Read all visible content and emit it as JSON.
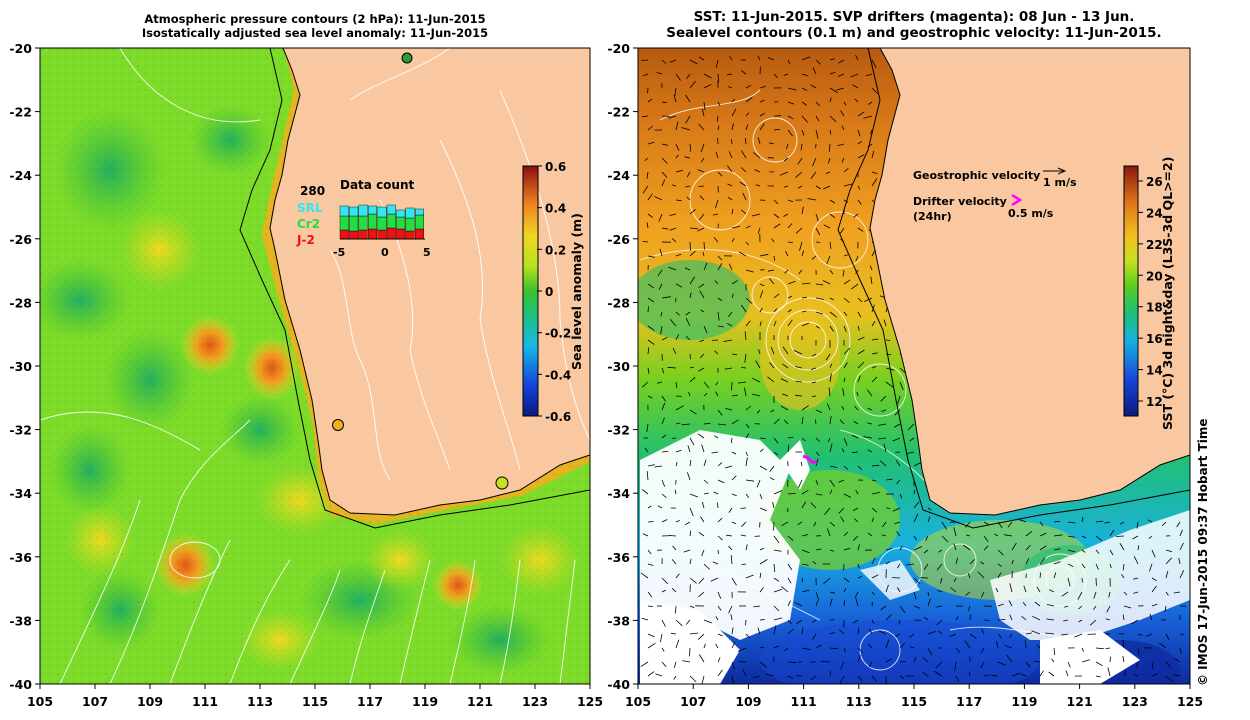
{
  "left_title": {
    "line1": "Atmospheric pressure contours (2 hPa): 11-Jun-2015",
    "line2": "Isostatically adjusted sea level anomaly: 11-Jun-2015"
  },
  "right_title": {
    "line1": "SST: 11-Jun-2015. SVP drifters (magenta): 08 Jun - 13 Jun.",
    "line2": "Sealevel contours (0.1 m) and geostrophic velocity: 11-Jun-2015."
  },
  "lat_ticks": [
    "-20",
    "-22",
    "-24",
    "-26",
    "-28",
    "-30",
    "-32",
    "-34",
    "-36",
    "-38",
    "-40"
  ],
  "lon_ticks": [
    "105",
    "107",
    "109",
    "111",
    "113",
    "115",
    "117",
    "119",
    "121",
    "123",
    "125"
  ],
  "left_colorbar": {
    "label": "Sea level anomaly (m)",
    "ticks": [
      "0.6",
      "0.4",
      "0.2",
      "0",
      "-0.2",
      "-0.4",
      "-0.6"
    ]
  },
  "right_colorbar": {
    "label": "SST (°C) 3d night&day (L3S-3d QL>=2)",
    "ticks": [
      "26",
      "24",
      "22",
      "20",
      "18",
      "16",
      "14",
      "12"
    ]
  },
  "data_count": {
    "title": "Data count",
    "total": "280",
    "sats": [
      "SRL",
      "Cr2",
      "J-2"
    ],
    "sat_colors": [
      "#33e6f2",
      "#22dd44",
      "#ee1111"
    ],
    "axis_ticks": [
      "-5",
      "0",
      "5"
    ]
  },
  "vector_legend": {
    "geo_label": "Geostrophic velocity",
    "geo_speed": "1 m/s",
    "drifter_label": "Drifter velocity",
    "drifter_sub": "(24hr)",
    "drifter_speed": "0.5 m/s"
  },
  "credit": "© IMOS 17-Jun-2015 09:37 Hobart Time",
  "colors": {
    "land": "#fac8a0",
    "sla_green": "#7ddc2a",
    "ocean_deep_blue": "#1a4fd0",
    "warm_sst": "#d77a20"
  }
}
